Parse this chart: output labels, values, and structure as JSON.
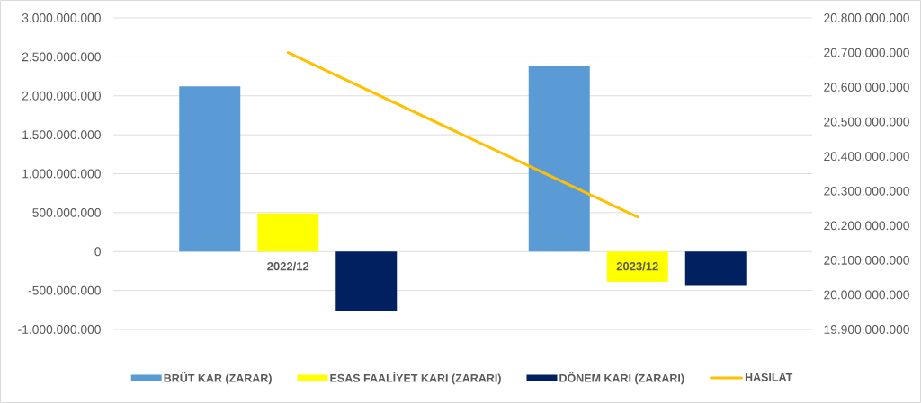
{
  "chart_data": {
    "type": "bar",
    "categories": [
      "2022/12",
      "2023/12"
    ],
    "series": [
      {
        "name": "BRÜT KAR (ZARAR)",
        "color": "#5b9bd5",
        "values": [
          2120000000,
          2380000000
        ]
      },
      {
        "name": "ESAS FAALİYET KARI (ZARARI)",
        "color": "#ffff00",
        "values": [
          490000000,
          -390000000
        ]
      },
      {
        "name": "DÖNEM KARI (ZARARI)",
        "color": "#002060",
        "values": [
          -770000000,
          -440000000
        ]
      },
      {
        "name": "HASILAT",
        "type": "line",
        "axis": "y2",
        "color": "#ffc000",
        "values": [
          20700000000,
          20225000000
        ]
      }
    ],
    "ylim": [
      -1000000000,
      3000000000
    ],
    "yticks": [
      {
        "value": -1000000000,
        "label": "-1.000.000.000"
      },
      {
        "value": -500000000,
        "label": "-500.000.000"
      },
      0,
      {
        "value": 500000000,
        "label": "500.000.000"
      },
      {
        "value": 1000000000,
        "label": "1.000.000.000"
      },
      {
        "value": 1500000000,
        "label": "1.500.000.000"
      },
      {
        "value": 2000000000,
        "label": "2.000.000.000"
      },
      {
        "value": 2500000000,
        "label": "2.500.000.000"
      },
      {
        "value": 3000000000,
        "label": "3.000.000.000"
      }
    ],
    "y2lim": [
      19900000000,
      20800000000
    ],
    "y2ticks": [
      {
        "value": 19900000000,
        "label": "19.900.000.000"
      },
      {
        "value": 20000000000,
        "label": "20.000.000.000"
      },
      {
        "value": 20100000000,
        "label": "20.100.000.000"
      },
      {
        "value": 20200000000,
        "label": "20.200.000.000"
      },
      {
        "value": 20300000000,
        "label": "20.300.000.000"
      },
      {
        "value": 20400000000,
        "label": "20.400.000.000"
      },
      {
        "value": 20500000000,
        "label": "20.500.000.000"
      },
      {
        "value": 20600000000,
        "label": "20.600.000.000"
      },
      {
        "value": 20700000000,
        "label": "20.700.000.000"
      },
      {
        "value": 20800000000,
        "label": "20.800.000.000"
      }
    ],
    "grid": "y",
    "legend": "bottom"
  }
}
